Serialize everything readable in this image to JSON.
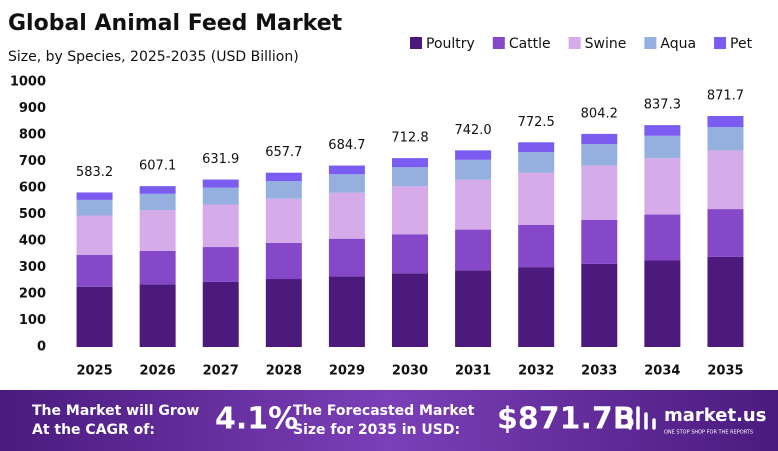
{
  "chart_data": {
    "type": "stacked_bar",
    "title": "Global Animal Feed Market",
    "subtitle": "Size, by Species, 2025-2035 (USD Billion)",
    "categories": [
      "2025",
      "2026",
      "2027",
      "2028",
      "2029",
      "2030",
      "2031",
      "2032",
      "2033",
      "2034",
      "2035"
    ],
    "series": [
      {
        "name": "Poultry",
        "color": "#4b1a7c",
        "values": [
          227.4,
          236.8,
          246.4,
          256.5,
          267.0,
          278.0,
          289.4,
          301.3,
          313.6,
          326.5,
          340.0
        ]
      },
      {
        "name": "Cattle",
        "color": "#8448c8",
        "values": [
          120.7,
          125.7,
          130.8,
          136.1,
          141.7,
          147.5,
          153.6,
          159.9,
          166.5,
          173.3,
          180.4
        ]
      },
      {
        "name": "Swine",
        "color": "#d6abea",
        "values": [
          148.1,
          154.2,
          160.5,
          167.1,
          173.9,
          181.1,
          188.5,
          196.2,
          204.3,
          212.7,
          221.4
        ]
      },
      {
        "name": "Aqua",
        "color": "#95afdf",
        "values": [
          58.9,
          61.3,
          63.8,
          66.4,
          69.2,
          72.0,
          74.9,
          78.0,
          81.2,
          84.6,
          88.0
        ]
      },
      {
        "name": "Pet",
        "color": "#7a5cf0",
        "values": [
          28.1,
          29.1,
          30.4,
          31.6,
          32.9,
          34.2,
          35.6,
          37.1,
          38.6,
          40.2,
          41.9
        ]
      }
    ],
    "totals": [
      583.2,
      607.1,
      631.9,
      657.7,
      684.7,
      712.8,
      742.0,
      772.5,
      804.2,
      837.3,
      871.7
    ],
    "total_labels": [
      "583.2",
      "607.1",
      "631.9",
      "657.7",
      "684.7",
      "712.8",
      "742.0",
      "772.5",
      "804.2",
      "837.3",
      "871.7"
    ],
    "ylim": [
      0,
      1000
    ],
    "yticks": [
      0,
      100,
      200,
      300,
      400,
      500,
      600,
      700,
      800,
      900,
      1000
    ],
    "grid": false,
    "legend": "top-right"
  },
  "footer": {
    "cagr_text": [
      "The Market will Grow",
      "At the CAGR of:"
    ],
    "cagr": "4.1%",
    "forecast_text": [
      "The Forecasted Market",
      "Size for 2035 in USD:"
    ],
    "forecast": "$871.7B",
    "brand": "market.us",
    "tagline": "ONE STOP SHOP FOR THE REPORTS"
  }
}
